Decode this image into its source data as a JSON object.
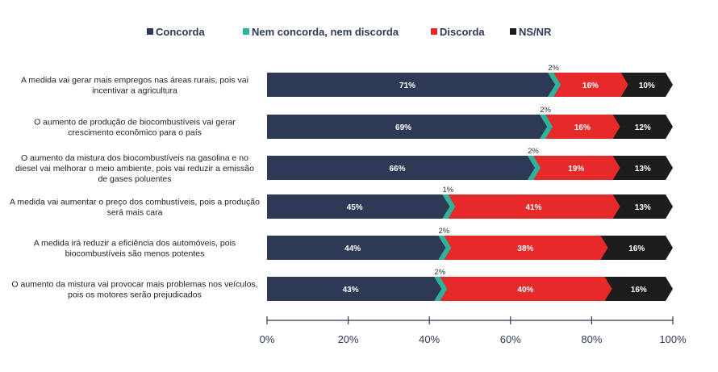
{
  "chart_data": {
    "type": "bar",
    "orientation": "horizontal",
    "stacked": true,
    "categories": [
      [
        "A medida vai gerar mais empregos nas áreas rurais, pois vai",
        "incentivar a agricultura"
      ],
      [
        "O aumento de produção de biocombustíveis vai gerar",
        "crescimento econômico para o país"
      ],
      [
        "O aumento da mistura dos biocombustíveis na gasolina e no",
        "diesel vai melhorar o meio ambiente, pois vai reduzir a emissão",
        "de gases poluentes"
      ],
      [
        "A medida vai aumentar o preço dos combustíveis, pois a produção",
        "será mais cara"
      ],
      [
        "A medida irá reduzir a eficiência dos automóveis, pois",
        "biocombustíveis são menos potentes"
      ],
      [
        "O aumento da mistura vai provocar mais problemas nos veículos,",
        "pois os motores serão prejudicados"
      ]
    ],
    "series": [
      {
        "name": "Concorda",
        "color": "#2e3a55",
        "values": [
          71,
          69,
          66,
          45,
          44,
          43
        ]
      },
      {
        "name": "Nem concorda, nem discorda",
        "color": "#2bb39c",
        "values": [
          2,
          2,
          2,
          1,
          2,
          2
        ]
      },
      {
        "name": "Discorda",
        "color": "#e62a2a",
        "values": [
          16,
          16,
          19,
          41,
          38,
          40
        ]
      },
      {
        "name": "NS/NR",
        "color": "#1c1c1c",
        "values": [
          10,
          12,
          13,
          13,
          16,
          16
        ]
      }
    ],
    "xlim": [
      0,
      100
    ],
    "xticks": [
      "0%",
      "20%",
      "40%",
      "60%",
      "80%",
      "100%"
    ],
    "value_suffix": "%",
    "legend_position": "top",
    "grid": false
  }
}
